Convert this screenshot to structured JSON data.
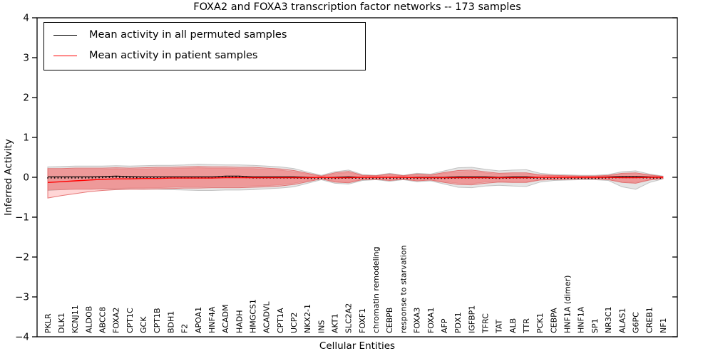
{
  "legend": {
    "entries": [
      {
        "label": "Mean activity in all permuted samples",
        "color": "#000000"
      },
      {
        "label": "Mean activity in patient samples",
        "color": "#ff0000"
      }
    ]
  },
  "chart_data": {
    "type": "line",
    "title": "FOXA2 and FOXA3 transcription factor networks -- 173 samples",
    "xlabel": "Cellular Entities",
    "ylabel": "Inferred Activity",
    "ylim": [
      -4,
      4
    ],
    "yticks": [
      4,
      3,
      2,
      1,
      0,
      -1,
      -2,
      -3,
      -4
    ],
    "grid": false,
    "legend_position": "upper left",
    "categories": [
      "PKLR",
      "DLK1",
      "KCNJ11",
      "ALDOB",
      "ABCC8",
      "FOXA2",
      "CPT1C",
      "GCK",
      "CPT1B",
      "BDH1",
      "F2",
      "APOA1",
      "HNF4A",
      "ACADM",
      "HADH",
      "HMGCS1",
      "ACADVL",
      "CPT1A",
      "UCP2",
      "NKX2-1",
      "INS",
      "AKT1",
      "SLC2A2",
      "FOXF1",
      "chromatin remodeling",
      "CEBPB",
      "response to starvation",
      "FOXA3",
      "FOXA1",
      "AFP",
      "PDX1",
      "IGFBP1",
      "TFRC",
      "TAT",
      "ALB",
      "TTR",
      "PCK1",
      "CEBPA",
      "HNF1A (dimer)",
      "HNF1A",
      "SP1",
      "NR3C1",
      "ALAS1",
      "G6PC",
      "CREB1",
      "NF1"
    ],
    "series": [
      {
        "name": "Mean activity in all permuted samples",
        "color": "#000000",
        "values": [
          0.01,
          0.01,
          0.01,
          0.01,
          0.02,
          0.03,
          0.02,
          0.01,
          0.01,
          0.01,
          0.01,
          0.01,
          0.01,
          0.03,
          0.03,
          0.01,
          0.01,
          0.01,
          0.01,
          0,
          0,
          0,
          0.01,
          0,
          0,
          0,
          0,
          0,
          0,
          0,
          0.01,
          0.01,
          0.01,
          0,
          0.01,
          0.01,
          0,
          0,
          0,
          0,
          0,
          0.01,
          0.02,
          0.02,
          0.01,
          0
        ]
      },
      {
        "name": "Mean activity in patient samples",
        "color": "#ff0000",
        "values": [
          -0.13,
          -0.11,
          -0.09,
          -0.07,
          -0.05,
          -0.04,
          -0.04,
          -0.03,
          -0.03,
          -0.02,
          -0.02,
          -0.02,
          -0.02,
          -0.01,
          -0.01,
          -0.01,
          -0.01,
          -0.01,
          -0.01,
          -0.01,
          0,
          -0.01,
          -0.01,
          0,
          0,
          0,
          0,
          -0.01,
          -0.01,
          -0.01,
          -0.01,
          -0.01,
          -0.01,
          -0.01,
          -0.01,
          -0.01,
          0,
          0,
          0,
          0,
          0,
          0,
          -0.01,
          -0.01,
          0,
          0
        ]
      }
    ],
    "bands": [
      {
        "name": "permuted-range",
        "color": "#999999",
        "fill_opacity": 0.25,
        "edge_color": "#bdbdbd",
        "edge_opacity": 0.9,
        "upper": [
          0.26,
          0.27,
          0.28,
          0.28,
          0.28,
          0.29,
          0.28,
          0.29,
          0.3,
          0.3,
          0.31,
          0.33,
          0.32,
          0.31,
          0.31,
          0.3,
          0.28,
          0.26,
          0.22,
          0.13,
          0.05,
          0.14,
          0.18,
          0.07,
          0.05,
          0.1,
          0.05,
          0.1,
          0.08,
          0.16,
          0.24,
          0.25,
          0.2,
          0.16,
          0.18,
          0.19,
          0.1,
          0.07,
          0.06,
          0.05,
          0.05,
          0.07,
          0.14,
          0.16,
          0.08,
          0.03
        ],
        "lower": [
          -0.33,
          -0.31,
          -0.3,
          -0.3,
          -0.29,
          -0.3,
          -0.29,
          -0.3,
          -0.3,
          -0.31,
          -0.32,
          -0.33,
          -0.33,
          -0.32,
          -0.32,
          -0.31,
          -0.29,
          -0.27,
          -0.24,
          -0.15,
          -0.06,
          -0.15,
          -0.17,
          -0.08,
          -0.06,
          -0.1,
          -0.06,
          -0.11,
          -0.09,
          -0.17,
          -0.25,
          -0.26,
          -0.22,
          -0.2,
          -0.22,
          -0.23,
          -0.12,
          -0.08,
          -0.07,
          -0.06,
          -0.06,
          -0.08,
          -0.24,
          -0.3,
          -0.13,
          -0.04
        ]
      },
      {
        "name": "patient-range-outer",
        "color": "#ff1c1c",
        "fill_opacity": 0.18,
        "edge_color": "#e05a5a",
        "edge_opacity": 0.8,
        "upper": [
          0.22,
          0.22,
          0.23,
          0.23,
          0.23,
          0.24,
          0.23,
          0.24,
          0.25,
          0.25,
          0.26,
          0.27,
          0.26,
          0.26,
          0.25,
          0.25,
          0.23,
          0.21,
          0.17,
          0.1,
          0.03,
          0.11,
          0.15,
          0.05,
          0.04,
          0.08,
          0.04,
          0.08,
          0.06,
          0.12,
          0.17,
          0.18,
          0.14,
          0.1,
          0.11,
          0.11,
          0.06,
          0.05,
          0.04,
          0.03,
          0.03,
          0.05,
          0.1,
          0.11,
          0.06,
          0.02
        ],
        "lower": [
          -0.52,
          -0.46,
          -0.41,
          -0.36,
          -0.33,
          -0.31,
          -0.3,
          -0.3,
          -0.29,
          -0.28,
          -0.27,
          -0.27,
          -0.26,
          -0.26,
          -0.26,
          -0.25,
          -0.24,
          -0.22,
          -0.18,
          -0.11,
          -0.04,
          -0.12,
          -0.14,
          -0.06,
          -0.05,
          -0.08,
          -0.05,
          -0.09,
          -0.07,
          -0.13,
          -0.18,
          -0.19,
          -0.15,
          -0.12,
          -0.13,
          -0.13,
          -0.07,
          -0.06,
          -0.05,
          -0.04,
          -0.04,
          -0.06,
          -0.13,
          -0.15,
          -0.07,
          -0.03
        ]
      },
      {
        "name": "patient-range-inner",
        "color": "#ff1c1c",
        "fill_opacity": 0.24,
        "edge_color": "#e87070",
        "edge_opacity": 0.5,
        "upper": [
          0.19,
          0.19,
          0.2,
          0.2,
          0.2,
          0.21,
          0.2,
          0.21,
          0.22,
          0.22,
          0.23,
          0.24,
          0.23,
          0.23,
          0.22,
          0.22,
          0.2,
          0.18,
          0.14,
          0.08,
          0.02,
          0.09,
          0.12,
          0.04,
          0.03,
          0.06,
          0.03,
          0.06,
          0.05,
          0.1,
          0.14,
          0.15,
          0.11,
          0.08,
          0.09,
          0.09,
          0.05,
          0.04,
          0.03,
          0.02,
          0.02,
          0.04,
          0.08,
          0.09,
          0.05,
          0.02
        ],
        "lower": [
          -0.31,
          -0.31,
          -0.3,
          -0.3,
          -0.29,
          -0.28,
          -0.27,
          -0.27,
          -0.26,
          -0.25,
          -0.24,
          -0.24,
          -0.23,
          -0.23,
          -0.23,
          -0.22,
          -0.21,
          -0.19,
          -0.15,
          -0.09,
          -0.03,
          -0.1,
          -0.12,
          -0.05,
          -0.04,
          -0.06,
          -0.04,
          -0.07,
          -0.06,
          -0.11,
          -0.15,
          -0.16,
          -0.12,
          -0.1,
          -0.11,
          -0.11,
          -0.06,
          -0.05,
          -0.04,
          -0.03,
          -0.03,
          -0.05,
          -0.11,
          -0.13,
          -0.06,
          -0.02
        ]
      }
    ]
  }
}
